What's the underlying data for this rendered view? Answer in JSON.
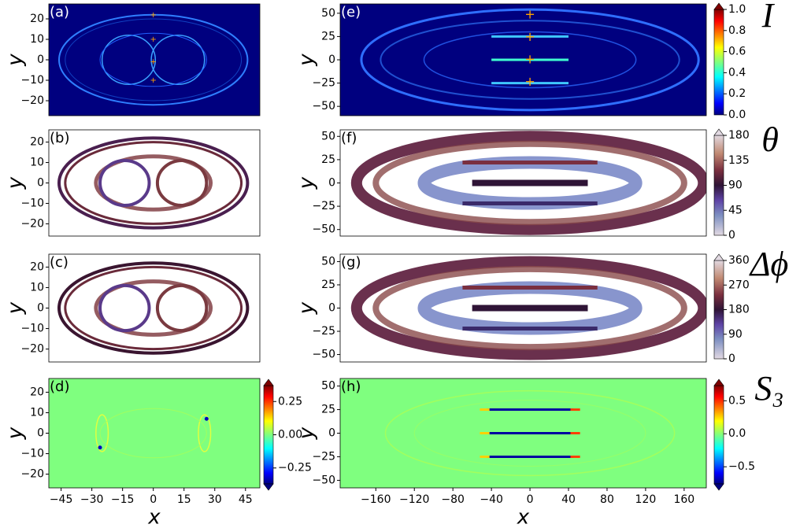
{
  "chart_data": [
    {
      "type": "heatmap",
      "label": "(a)",
      "ylabel": "y",
      "xlim": [
        -51,
        52
      ],
      "ylim": [
        -27.3,
        27.3
      ],
      "yticks": [
        {
          "value": -20,
          "label": "−20"
        },
        {
          "value": -10,
          "label": "−10"
        },
        0,
        10,
        20
      ]
    },
    {
      "type": "heatmap",
      "label": "(b)",
      "ylabel": "y",
      "xlim": [
        -51,
        52
      ],
      "ylim": [
        -26,
        26
      ],
      "yticks": [
        {
          "value": -20,
          "label": "−20"
        },
        {
          "value": -10,
          "label": "−10"
        },
        0,
        10,
        20
      ]
    },
    {
      "type": "heatmap",
      "label": "(c)",
      "ylabel": "y",
      "xlim": [
        -51,
        52
      ],
      "ylim": [
        -26.3,
        26.3
      ],
      "yticks": [
        {
          "value": -20,
          "label": "−20"
        },
        {
          "value": -10,
          "label": "−10"
        },
        0,
        10,
        20
      ]
    },
    {
      "type": "heatmap",
      "label": "(d)",
      "ylabel": "y",
      "xlabel": "x",
      "xlim": [
        -51,
        52
      ],
      "ylim": [
        -26.7,
        26.7
      ],
      "yticks": [
        {
          "value": -20,
          "label": "−20"
        },
        {
          "value": -10,
          "label": "−10"
        },
        0,
        10,
        20
      ],
      "xticks": [
        {
          "value": -45,
          "label": "−45"
        },
        {
          "value": -30,
          "label": "−30"
        },
        {
          "value": -15,
          "label": "−15"
        },
        0,
        15,
        30,
        45
      ],
      "colorbar": {
        "colormap": "jet",
        "lim": [
          -0.37,
          0.37
        ],
        "extend": "both",
        "ticks": [
          {
            "value": -0.25,
            "label": "−0.25"
          },
          {
            "value": 0,
            "label": "0.00"
          },
          0.25
        ]
      }
    },
    {
      "type": "heatmap",
      "label": "(e)",
      "ylabel": "y",
      "xlim": [
        -197,
        183
      ],
      "ylim": [
        -60,
        60
      ],
      "yticks": [
        {
          "value": -50,
          "label": "−50"
        },
        {
          "value": -25,
          "label": "−25"
        },
        0,
        25,
        50
      ],
      "colorbar": {
        "label": "I",
        "colormap": "jet",
        "lim": [
          0,
          1
        ],
        "extend": "max",
        "ticks": [
          {
            "value": 0,
            "label": "0.0"
          },
          0.2,
          0.4,
          0.6,
          0.8,
          {
            "value": 1,
            "label": "1.0"
          }
        ]
      }
    },
    {
      "type": "heatmap",
      "label": "(f)",
      "ylabel": "y",
      "xlim": [
        -197,
        183
      ],
      "ylim": [
        -57,
        57
      ],
      "yticks": [
        {
          "value": -50,
          "label": "−50"
        },
        {
          "value": -25,
          "label": "−25"
        },
        0,
        25,
        50
      ],
      "colorbar": {
        "label": "θ",
        "colormap": "twilight",
        "lim": [
          0,
          180
        ],
        "extend": "max",
        "ticks": [
          0,
          45,
          90,
          135,
          180
        ]
      }
    },
    {
      "type": "heatmap",
      "label": "(g)",
      "ylabel": "y",
      "xlim": [
        -197,
        183
      ],
      "ylim": [
        -58,
        58
      ],
      "yticks": [
        {
          "value": -50,
          "label": "−50"
        },
        {
          "value": -25,
          "label": "−25"
        },
        0,
        25,
        50
      ],
      "colorbar": {
        "label": "Δϕ",
        "colormap": "twilight",
        "lim": [
          0,
          360
        ],
        "extend": "max",
        "ticks": [
          0,
          90,
          180,
          270,
          360
        ]
      }
    },
    {
      "type": "heatmap",
      "label": "(h)",
      "ylabel": "y",
      "xlabel": "x",
      "xlim": [
        -197,
        183
      ],
      "ylim": [
        -58,
        58
      ],
      "yticks": [
        {
          "value": -50,
          "label": "−50"
        },
        {
          "value": -25,
          "label": "−25"
        },
        0,
        25,
        50
      ],
      "xticks": [
        {
          "value": -160,
          "label": "−160"
        },
        {
          "value": -120,
          "label": "−120"
        },
        {
          "value": -80,
          "label": "−80"
        },
        {
          "value": -40,
          "label": "−40"
        },
        0,
        40,
        80,
        120,
        160
      ],
      "colorbar": {
        "label": "S₃",
        "colormap": "jet",
        "lim": [
          -0.76,
          0.73
        ],
        "extend": "both",
        "ticks": [
          {
            "value": -0.5,
            "label": "−0.5"
          },
          {
            "value": 0,
            "label": "0.0"
          },
          0.5
        ]
      }
    }
  ]
}
